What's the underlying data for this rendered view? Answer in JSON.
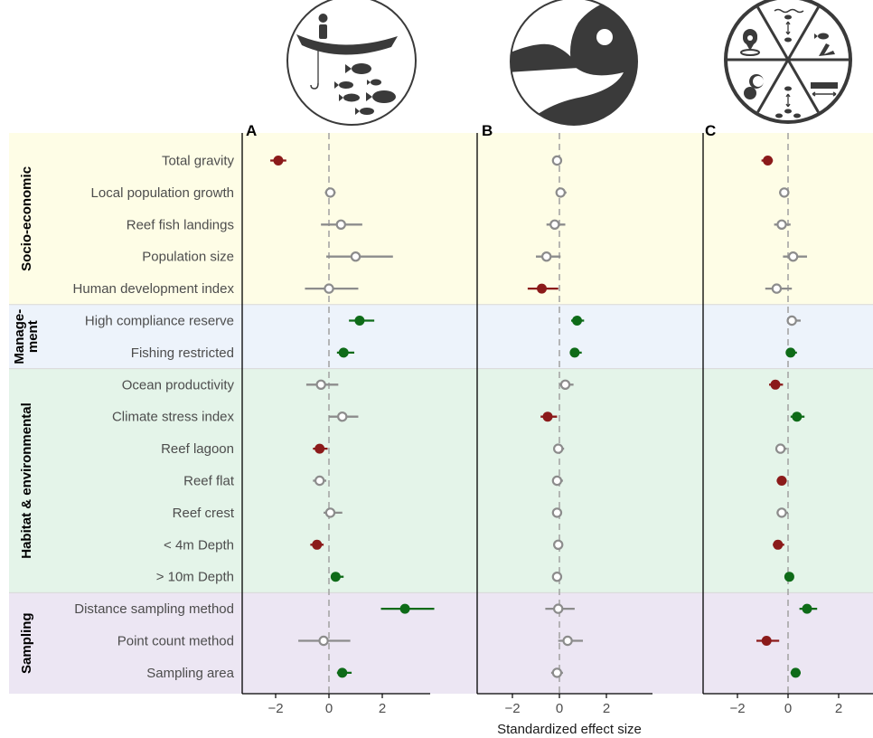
{
  "colors": {
    "negative": "#8b1a1a",
    "positive": "#0e6b18",
    "neutral": "#8c8c8c",
    "band_socio": "#fefde6",
    "band_management": "#edf3fb",
    "band_habitat": "#e4f4e9",
    "band_sampling": "#ece6f3",
    "icon_dark": "#3a3a3a",
    "zero_line": "#a6a6a6"
  },
  "icons": [
    "fishing-boat-icon",
    "fish-head-icon",
    "function-wheel-icon"
  ],
  "xlabel": "Standardized effect size",
  "groups": [
    {
      "name": "Socio-economic",
      "line1": "Socio-economic",
      "line2": ""
    },
    {
      "name": "Management",
      "line1": "Manage-",
      "line2": "ment"
    },
    {
      "name": "Habitat & environmental",
      "line1": "Habitat & environmental",
      "line2": ""
    },
    {
      "name": "Sampling",
      "line1": "Sampling",
      "line2": ""
    }
  ],
  "chart_data": [
    {
      "panel": "A",
      "type": "scatter",
      "xticks": [
        -2,
        0,
        2
      ],
      "xlim": [
        -3.5,
        4.4
      ],
      "rows": [
        {
          "label": "Total gravity",
          "group": "Socio-economic",
          "estimate": -1.9,
          "low": -2.2,
          "high": -1.6,
          "effect": "negative"
        },
        {
          "label": "Local population growth",
          "group": "Socio-economic",
          "estimate": 0.05,
          "low": -0.15,
          "high": 0.25,
          "effect": "neutral"
        },
        {
          "label": "Reef fish landings",
          "group": "Socio-economic",
          "estimate": 0.45,
          "low": -0.3,
          "high": 1.25,
          "effect": "neutral"
        },
        {
          "label": "Population size",
          "group": "Socio-economic",
          "estimate": 1.0,
          "low": -0.1,
          "high": 2.4,
          "effect": "neutral"
        },
        {
          "label": "Human development index",
          "group": "Socio-economic",
          "estimate": 0.0,
          "low": -0.9,
          "high": 1.1,
          "effect": "neutral"
        },
        {
          "label": "High compliance reserve",
          "group": "Management",
          "estimate": 1.15,
          "low": 0.75,
          "high": 1.7,
          "effect": "positive"
        },
        {
          "label": "Fishing restricted",
          "group": "Management",
          "estimate": 0.55,
          "low": 0.3,
          "high": 0.95,
          "effect": "positive"
        },
        {
          "label": "Ocean productivity",
          "group": "Habitat & environmental",
          "estimate": -0.3,
          "low": -0.85,
          "high": 0.35,
          "effect": "neutral"
        },
        {
          "label": "Climate stress index",
          "group": "Habitat & environmental",
          "estimate": 0.5,
          "low": 0.0,
          "high": 1.1,
          "effect": "neutral"
        },
        {
          "label": "Reef lagoon",
          "group": "Habitat & environmental",
          "estimate": -0.35,
          "low": -0.6,
          "high": -0.05,
          "effect": "negative"
        },
        {
          "label": "Reef flat",
          "group": "Habitat & environmental",
          "estimate": -0.35,
          "low": -0.6,
          "high": -0.1,
          "effect": "neutral"
        },
        {
          "label": "Reef crest",
          "group": "Habitat & environmental",
          "estimate": 0.05,
          "low": -0.2,
          "high": 0.5,
          "effect": "neutral"
        },
        {
          "label": "< 4m Depth",
          "group": "Habitat & environmental",
          "estimate": -0.45,
          "low": -0.7,
          "high": -0.2,
          "effect": "negative"
        },
        {
          "label": "> 10m Depth",
          "group": "Habitat & environmental",
          "estimate": 0.25,
          "low": 0.1,
          "high": 0.55,
          "effect": "positive"
        },
        {
          "label": "Distance sampling method",
          "group": "Sampling",
          "estimate": 2.85,
          "low": 1.95,
          "high": 3.95,
          "effect": "positive"
        },
        {
          "label": "Point count method",
          "group": "Sampling",
          "estimate": -0.2,
          "low": -1.15,
          "high": 0.8,
          "effect": "neutral"
        },
        {
          "label": "Sampling area",
          "group": "Sampling",
          "estimate": 0.5,
          "low": 0.3,
          "high": 0.85,
          "effect": "positive"
        }
      ]
    },
    {
      "panel": "B",
      "type": "scatter",
      "xticks": [
        -2,
        0,
        2
      ],
      "xlim": [
        -3.5,
        4.0
      ],
      "rows": [
        {
          "label": "Total gravity",
          "estimate": -0.1,
          "low": -0.3,
          "high": 0.1,
          "effect": "neutral"
        },
        {
          "label": "Local population growth",
          "estimate": 0.05,
          "low": -0.15,
          "high": 0.3,
          "effect": "neutral"
        },
        {
          "label": "Reef fish landings",
          "estimate": -0.2,
          "low": -0.55,
          "high": 0.25,
          "effect": "neutral"
        },
        {
          "label": "Population size",
          "estimate": -0.55,
          "low": -1.0,
          "high": 0.05,
          "effect": "neutral"
        },
        {
          "label": "Human development index",
          "estimate": -0.75,
          "low": -1.35,
          "high": -0.05,
          "effect": "negative"
        },
        {
          "label": "High compliance reserve",
          "estimate": 0.75,
          "low": 0.5,
          "high": 1.05,
          "effect": "positive"
        },
        {
          "label": "Fishing restricted",
          "estimate": 0.65,
          "low": 0.45,
          "high": 0.95,
          "effect": "positive"
        },
        {
          "label": "Ocean productivity",
          "estimate": 0.25,
          "low": 0.0,
          "high": 0.6,
          "effect": "neutral"
        },
        {
          "label": "Climate stress index",
          "estimate": -0.5,
          "low": -0.8,
          "high": -0.1,
          "effect": "negative"
        },
        {
          "label": "Reef lagoon",
          "estimate": -0.05,
          "low": -0.25,
          "high": 0.2,
          "effect": "neutral"
        },
        {
          "label": "Reef flat",
          "estimate": -0.1,
          "low": -0.3,
          "high": 0.15,
          "effect": "neutral"
        },
        {
          "label": "Reef crest",
          "estimate": -0.1,
          "low": -0.3,
          "high": 0.1,
          "effect": "neutral"
        },
        {
          "label": "< 4m Depth",
          "estimate": -0.05,
          "low": -0.25,
          "high": 0.1,
          "effect": "neutral"
        },
        {
          "label": "> 10m Depth",
          "estimate": -0.1,
          "low": -0.3,
          "high": 0.1,
          "effect": "neutral"
        },
        {
          "label": "Distance sampling method",
          "estimate": -0.05,
          "low": -0.6,
          "high": 0.65,
          "effect": "neutral"
        },
        {
          "label": "Point count method",
          "estimate": 0.35,
          "low": -0.05,
          "high": 1.0,
          "effect": "neutral"
        },
        {
          "label": "Sampling area",
          "estimate": -0.1,
          "low": -0.35,
          "high": 0.15,
          "effect": "neutral"
        }
      ]
    },
    {
      "panel": "C",
      "type": "scatter",
      "xticks": [
        -2,
        0,
        2
      ],
      "xlim": [
        -3.5,
        3.3
      ],
      "rows": [
        {
          "label": "Total gravity",
          "estimate": -0.8,
          "low": -1.05,
          "high": -0.6,
          "effect": "negative"
        },
        {
          "label": "Local population growth",
          "estimate": -0.15,
          "low": -0.35,
          "high": 0.05,
          "effect": "neutral"
        },
        {
          "label": "Reef fish landings",
          "estimate": -0.25,
          "low": -0.55,
          "high": 0.1,
          "effect": "neutral"
        },
        {
          "label": "Population size",
          "estimate": 0.2,
          "low": -0.2,
          "high": 0.75,
          "effect": "neutral"
        },
        {
          "label": "Human development index",
          "estimate": -0.45,
          "low": -0.9,
          "high": 0.15,
          "effect": "neutral"
        },
        {
          "label": "High compliance reserve",
          "estimate": 0.15,
          "low": -0.05,
          "high": 0.5,
          "effect": "neutral"
        },
        {
          "label": "Fishing restricted",
          "estimate": 0.1,
          "low": -0.05,
          "high": 0.35,
          "effect": "positive"
        },
        {
          "label": "Ocean productivity",
          "estimate": -0.5,
          "low": -0.75,
          "high": -0.2,
          "effect": "negative"
        },
        {
          "label": "Climate stress index",
          "estimate": 0.35,
          "low": 0.1,
          "high": 0.65,
          "effect": "positive"
        },
        {
          "label": "Reef lagoon",
          "estimate": -0.3,
          "low": -0.5,
          "high": -0.05,
          "effect": "neutral"
        },
        {
          "label": "Reef flat",
          "estimate": -0.25,
          "low": -0.45,
          "high": -0.05,
          "effect": "negative"
        },
        {
          "label": "Reef crest",
          "estimate": -0.25,
          "low": -0.45,
          "high": 0.0,
          "effect": "neutral"
        },
        {
          "label": "< 4m Depth",
          "estimate": -0.4,
          "low": -0.6,
          "high": -0.15,
          "effect": "negative"
        },
        {
          "label": "> 10m Depth",
          "estimate": 0.05,
          "low": -0.05,
          "high": 0.2,
          "effect": "positive"
        },
        {
          "label": "Distance sampling method",
          "estimate": 0.75,
          "low": 0.45,
          "high": 1.15,
          "effect": "positive"
        },
        {
          "label": "Point count method",
          "estimate": -0.85,
          "low": -1.25,
          "high": -0.35,
          "effect": "negative"
        },
        {
          "label": "Sampling area",
          "estimate": 0.3,
          "low": 0.1,
          "high": 0.5,
          "effect": "positive"
        }
      ]
    }
  ]
}
